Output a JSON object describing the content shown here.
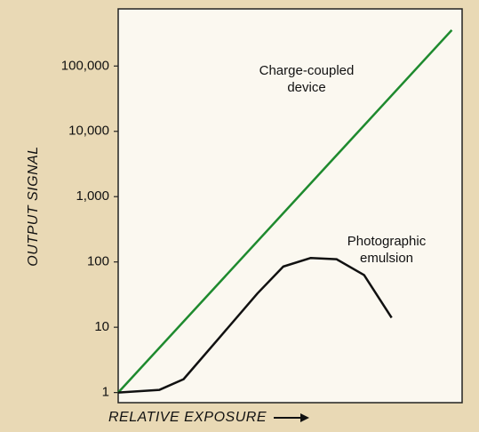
{
  "chart_data": {
    "type": "line",
    "xlabel": "RELATIVE EXPOSURE",
    "ylabel": "OUTPUT SIGNAL",
    "xlim": [
      0,
      10
    ],
    "ylim": [
      0.7,
      750000
    ],
    "ylog": true,
    "yticks": [
      1,
      10,
      100,
      {
        "value": 1000,
        "label": "1,000"
      },
      {
        "value": 10000,
        "label": "10,000"
      },
      {
        "value": 100000,
        "label": "100,000"
      }
    ],
    "series": [
      {
        "name": "Charge-coupled device",
        "label_lines": [
          "Charge-coupled",
          "device"
        ],
        "color": "#1e8a2e",
        "x": [
          0,
          9.7
        ],
        "values": [
          1,
          355000
        ]
      },
      {
        "name": "Photographic emulsion",
        "label_lines": [
          "Photographic",
          "emulsion"
        ],
        "color": "#111111",
        "x": [
          0,
          1.2,
          1.9,
          3.0,
          4.05,
          4.8,
          5.6,
          6.35,
          7.15,
          7.95
        ],
        "values": [
          1,
          1.1,
          1.6,
          7.5,
          33,
          85,
          115,
          110,
          63,
          14
        ]
      }
    ]
  }
}
